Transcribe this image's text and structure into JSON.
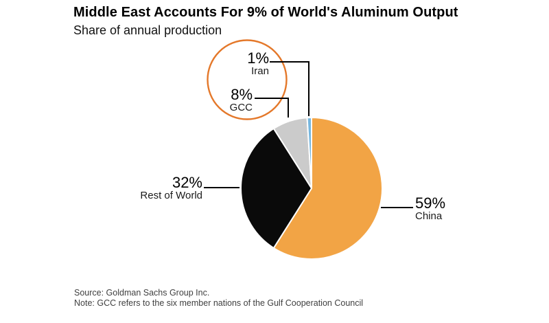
{
  "header": {
    "title": "Middle East Accounts For 9% of World's Aluminum Output",
    "subtitle": "Share of annual production"
  },
  "chart_data": {
    "type": "pie",
    "title": "Middle East Accounts For 9% of World's Aluminum Output",
    "subtitle": "Share of annual production",
    "direction": "clockwise",
    "start_angle_deg": 0,
    "slices": [
      {
        "label": "China",
        "value": 59,
        "display": "59%",
        "color": "#F2A445"
      },
      {
        "label": "Rest of World",
        "value": 32,
        "display": "32%",
        "color": "#0A0A0A"
      },
      {
        "label": "GCC",
        "value": 8,
        "display": "8%",
        "color": "#CBCBCB"
      },
      {
        "label": "Iran",
        "value": 1,
        "display": "1%",
        "color": "#77B7DF"
      }
    ],
    "annotation": {
      "shape": "circle",
      "color": "#E4782A",
      "highlights": [
        "Iran",
        "GCC"
      ]
    },
    "legend": "none",
    "labels_connected_by_lines": true
  },
  "footer": {
    "source": "Source: Goldman Sachs Group Inc.",
    "note": "Note: GCC refers to the six member nations of the Gulf Cooperation Council"
  }
}
